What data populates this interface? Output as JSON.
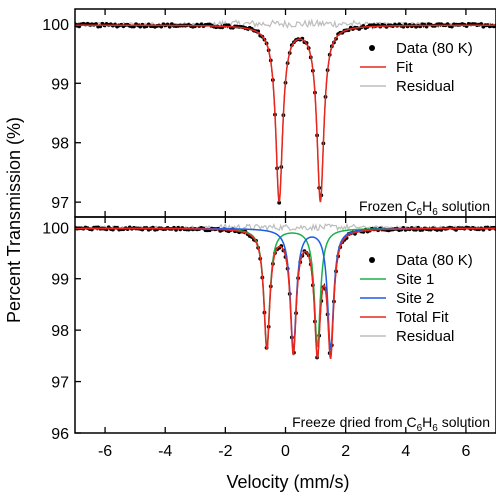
{
  "chart_data": {
    "type": "scatter",
    "xlabel": "Velocity (mm/s)",
    "ylabel": "Percent Transmission (%)",
    "xlim": [
      -7,
      7
    ],
    "x_ticks": [
      -6,
      -4,
      -2,
      0,
      2,
      4,
      6
    ],
    "colors": {
      "data": "#000000",
      "fit": "#e8281e",
      "residual": "#bdbdbd",
      "site1": "#1db04b",
      "site2": "#1e5ce8"
    },
    "panels": [
      {
        "ylim": [
          96.75,
          100.25
        ],
        "y_ticks": [
          97,
          98,
          99,
          100
        ],
        "annotation": {
          "main": "Frozen C",
          "sub1": "6",
          "mid": "H",
          "sub2": "6",
          "tail": " solution"
        },
        "legend": [
          {
            "label": "Data (80 K)",
            "kind": "dot",
            "color": "#000000"
          },
          {
            "label": "Fit",
            "kind": "line",
            "color": "#e8281e"
          },
          {
            "label": "Residual",
            "kind": "line",
            "color": "#bdbdbd"
          }
        ],
        "model": {
          "baseline": 99.98,
          "peaks": [
            {
              "center": -0.21,
              "depth": 2.95,
              "hwhm": 0.14
            },
            {
              "center": 1.16,
              "depth": 2.95,
              "hwhm": 0.14
            }
          ]
        },
        "series": [
          {
            "name": "Data (80 K)",
            "sampled_from": "model"
          },
          {
            "name": "Fit",
            "sampled_from": "model"
          },
          {
            "name": "Residual",
            "offset": 100.0
          }
        ]
      },
      {
        "ylim": [
          96.0,
          100.2
        ],
        "y_ticks": [
          96,
          97,
          98,
          99,
          100
        ],
        "annotation": {
          "main": "Freeze dried from C",
          "sub1": "6",
          "mid": "H",
          "sub2": "6",
          "tail": " solution"
        },
        "legend": [
          {
            "label": "Data (80 K)",
            "kind": "dot",
            "color": "#000000"
          },
          {
            "label": "Site 1",
            "kind": "line",
            "color": "#1db04b"
          },
          {
            "label": "Site 2",
            "kind": "line",
            "color": "#1e5ce8"
          },
          {
            "label": "Total Fit",
            "kind": "line",
            "color": "#e8281e"
          },
          {
            "label": "Residual",
            "kind": "line",
            "color": "#bdbdbd"
          }
        ],
        "model": {
          "baseline": 99.98,
          "site1": [
            {
              "center": -0.62,
              "depth": 2.3,
              "hwhm": 0.12
            },
            {
              "center": 1.06,
              "depth": 2.3,
              "hwhm": 0.12
            }
          ],
          "site2": [
            {
              "center": 0.26,
              "depth": 2.35,
              "hwhm": 0.12
            },
            {
              "center": 1.5,
              "depth": 2.35,
              "hwhm": 0.12
            }
          ]
        },
        "series": [
          {
            "name": "Data (80 K)",
            "sampled_from": "model"
          },
          {
            "name": "Site 1",
            "sampled_from": "site1"
          },
          {
            "name": "Site 2",
            "sampled_from": "site2"
          },
          {
            "name": "Total Fit",
            "sampled_from": "model"
          },
          {
            "name": "Residual",
            "offset": 100.0
          }
        ]
      }
    ]
  }
}
